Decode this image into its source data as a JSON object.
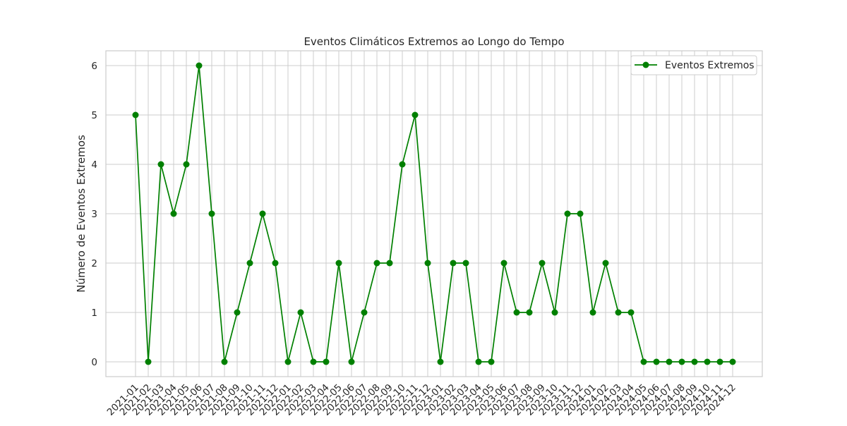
{
  "chart_data": {
    "type": "line",
    "title": "Eventos Climáticos Extremos ao Longo do Tempo",
    "xlabel": "",
    "ylabel": "Número de Eventos Extremos",
    "categories": [
      "2021-01",
      "2021-02",
      "2021-03",
      "2021-04",
      "2021-05",
      "2021-06",
      "2021-07",
      "2021-08",
      "2021-09",
      "2021-10",
      "2021-11",
      "2021-12",
      "2022-01",
      "2022-02",
      "2022-03",
      "2022-04",
      "2022-05",
      "2022-06",
      "2022-07",
      "2022-08",
      "2022-09",
      "2022-10",
      "2022-11",
      "2022-12",
      "2023-01",
      "2023-02",
      "2023-03",
      "2023-04",
      "2023-05",
      "2023-06",
      "2023-07",
      "2023-08",
      "2023-09",
      "2023-10",
      "2023-11",
      "2023-12",
      "2024-01",
      "2024-02",
      "2024-03",
      "2024-04",
      "2024-05",
      "2024-06",
      "2024-07",
      "2024-08",
      "2024-09",
      "2024-10",
      "2024-11",
      "2024-12"
    ],
    "series": [
      {
        "name": "Eventos Extremos",
        "color": "#008000",
        "marker": "circle",
        "values": [
          5,
          0,
          4,
          3,
          4,
          6,
          3,
          0,
          1,
          2,
          3,
          2,
          0,
          1,
          0,
          0,
          2,
          0,
          1,
          2,
          2,
          4,
          5,
          2,
          0,
          2,
          2,
          0,
          0,
          2,
          1,
          1,
          2,
          1,
          3,
          3,
          1,
          2,
          1,
          1,
          0,
          0,
          0,
          0,
          0,
          0,
          0,
          0
        ]
      }
    ],
    "yticks": [
      0,
      1,
      2,
      3,
      4,
      5,
      6
    ],
    "ylim": [
      -0.3,
      6.3
    ],
    "grid": true,
    "legend_position": "top-right"
  }
}
